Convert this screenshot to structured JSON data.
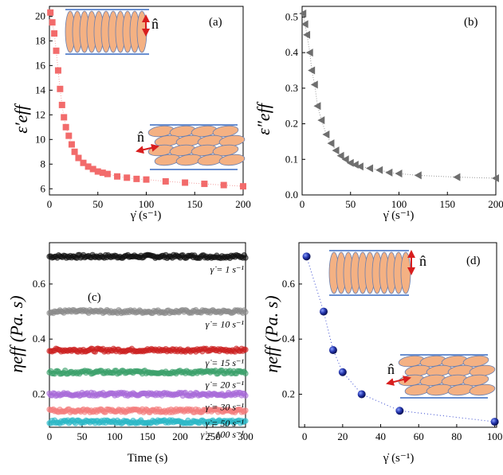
{
  "chart_data": [
    {
      "type": "scatter",
      "panel": "(a)",
      "ylabel": "ε′eff",
      "xlabel": "γ̇ (s⁻¹)",
      "xlim": [
        0,
        200
      ],
      "ylim": [
        5.5,
        20.8
      ],
      "xticks": [
        0,
        50,
        100,
        150,
        200
      ],
      "yticks": [
        6,
        8,
        10,
        12,
        14,
        16,
        18,
        20
      ],
      "marker": "square",
      "color": "#f26b6b",
      "x": [
        1,
        3,
        5,
        7,
        9,
        11,
        13,
        15,
        17,
        20,
        23,
        26,
        30,
        35,
        40,
        45,
        50,
        55,
        60,
        70,
        80,
        90,
        100,
        120,
        140,
        160,
        180,
        200
      ],
      "y": [
        20.3,
        19.5,
        18.6,
        17.2,
        15.6,
        14.1,
        12.8,
        11.8,
        11.0,
        10.3,
        9.6,
        9.0,
        8.5,
        8.1,
        7.8,
        7.6,
        7.4,
        7.3,
        7.2,
        7.0,
        6.9,
        6.8,
        6.75,
        6.6,
        6.5,
        6.4,
        6.3,
        6.2
      ]
    },
    {
      "type": "scatter",
      "panel": "(b)",
      "ylabel": "ε″eff",
      "xlabel": "γ̇ (s⁻¹)",
      "xlim": [
        0,
        200
      ],
      "ylim": [
        0,
        0.53
      ],
      "xticks": [
        0,
        50,
        100,
        150,
        200
      ],
      "yticks": [
        0.0,
        0.1,
        0.2,
        0.3,
        0.4,
        0.5
      ],
      "marker": "triangle-left",
      "color": "#6e6e6e",
      "x": [
        1,
        3,
        5,
        8,
        10,
        13,
        16,
        20,
        25,
        30,
        35,
        40,
        45,
        50,
        55,
        60,
        70,
        80,
        90,
        100,
        120,
        160,
        200
      ],
      "y": [
        0.51,
        0.48,
        0.45,
        0.4,
        0.35,
        0.31,
        0.25,
        0.21,
        0.17,
        0.145,
        0.125,
        0.11,
        0.1,
        0.09,
        0.085,
        0.08,
        0.075,
        0.07,
        0.063,
        0.06,
        0.055,
        0.05,
        0.047
      ]
    },
    {
      "type": "line",
      "panel": "(c)",
      "ylabel": "ηeff (Pa. s)",
      "xlabel": "Time (s)",
      "xlim": [
        0,
        300
      ],
      "ylim": [
        0.08,
        0.75
      ],
      "xticks": [
        0,
        50,
        100,
        150,
        200,
        250,
        300
      ],
      "yticks": [
        0.2,
        0.4,
        0.6
      ],
      "series": [
        {
          "name": "γ̇ = 1 s⁻¹",
          "level": 0.7,
          "color": "#111111"
        },
        {
          "name": "γ̇ = 10 s⁻¹",
          "level": 0.5,
          "color": "#8a8a8a"
        },
        {
          "name": "γ̇ = 15 s⁻¹",
          "level": 0.36,
          "color": "#cc1f1f"
        },
        {
          "name": "γ̇ = 20 s⁻¹",
          "level": 0.28,
          "color": "#3aa06a"
        },
        {
          "name": "γ̇ = 30 s⁻¹",
          "level": 0.2,
          "color": "#a86ad8"
        },
        {
          "name": "γ̇ = 50 s⁻¹",
          "level": 0.14,
          "color": "#f47c7c"
        },
        {
          "name": "γ̇ = 100 s⁻¹",
          "level": 0.1,
          "color": "#2ab8c6"
        }
      ]
    },
    {
      "type": "scatter",
      "panel": "(d)",
      "ylabel": "ηeff (Pa. s)",
      "xlabel": "γ̇ (s⁻¹)",
      "xlim": [
        -3,
        101
      ],
      "ylim": [
        0.08,
        0.75
      ],
      "xticks": [
        0,
        20,
        40,
        60,
        80,
        100
      ],
      "yticks": [
        0.2,
        0.4,
        0.6
      ],
      "marker": "sphere",
      "color": "#1a2a9c",
      "x": [
        1,
        10,
        15,
        20,
        30,
        50,
        100
      ],
      "y": [
        0.7,
        0.5,
        0.36,
        0.28,
        0.2,
        0.14,
        0.1
      ]
    }
  ],
  "insets": {
    "director_label": "n̂"
  }
}
